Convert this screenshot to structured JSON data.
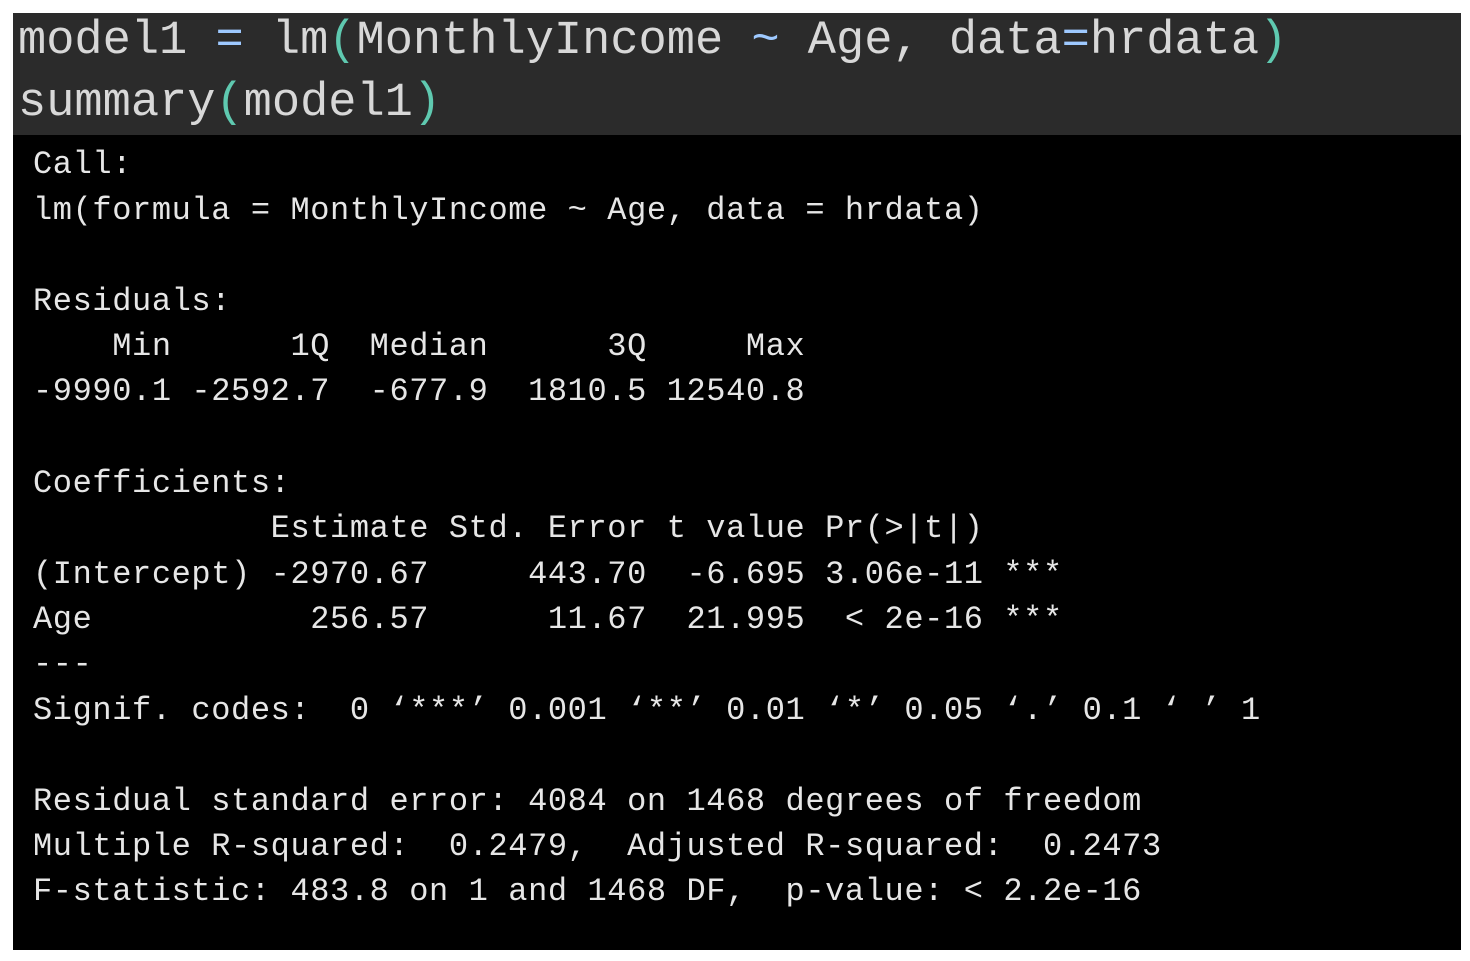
{
  "editor": {
    "line1": {
      "a": "model1 ",
      "b": "=",
      "c": " lm",
      "d": "(",
      "e": "MonthlyIncome ",
      "f": "~",
      "g": " Age, data",
      "h": "=",
      "i": "hrdata",
      "j": ")"
    },
    "line2": {
      "a": "summary",
      "b": "(",
      "c": "model1",
      "d": ")"
    }
  },
  "console": {
    "lines": [
      "Call:",
      "lm(formula = MonthlyIncome ~ Age, data = hrdata)",
      "",
      "Residuals:",
      "    Min      1Q  Median      3Q     Max ",
      "-9990.1 -2592.7  -677.9  1810.5 12540.8 ",
      "",
      "Coefficients:",
      "            Estimate Std. Error t value Pr(>|t|)    ",
      "(Intercept) -2970.67     443.70  -6.695 3.06e-11 ***",
      "Age           256.57      11.67  21.995  < 2e-16 ***",
      "---",
      "Signif. codes:  0 ‘***’ 0.001 ‘**’ 0.01 ‘*’ 0.05 ‘.’ 0.1 ‘ ’ 1",
      "",
      "Residual standard error: 4084 on 1468 degrees of freedom",
      "Multiple R-squared:  0.2479,\tAdjusted R-squared:  0.2473 ",
      "F-statistic: 483.8 on 1 and 1468 DF,  p-value: < 2.2e-16"
    ]
  }
}
